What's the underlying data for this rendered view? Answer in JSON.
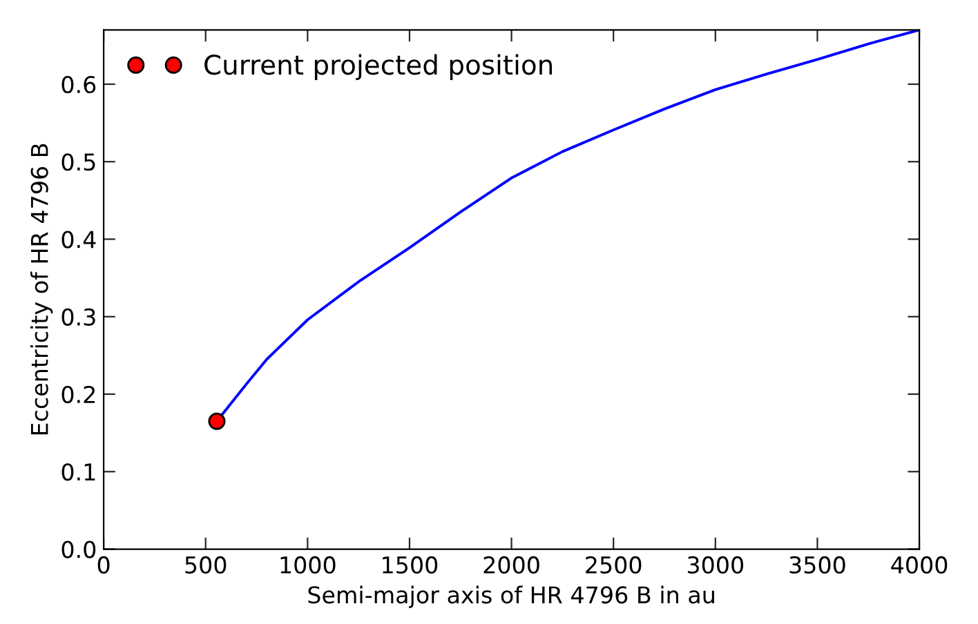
{
  "chart_data": {
    "type": "line",
    "xlabel": "Semi-major axis of HR 4796 B in au",
    "ylabel": "Eccentricity of HR 4796 B",
    "xlim": [
      0,
      4000
    ],
    "xticks": [
      0,
      500,
      1000,
      1500,
      2000,
      2500,
      3000,
      3500,
      4000
    ],
    "ylim": [
      0,
      0.67
    ],
    "yticks": [
      {
        "value": 0,
        "label": "0.0"
      },
      0.1,
      0.2,
      0.3,
      0.4,
      0.5,
      0.6
    ],
    "grid": false,
    "legend": "top left",
    "series": [
      {
        "color": "#0000ff",
        "x": [
          555,
          600,
          700,
          800,
          1000,
          1250,
          1500,
          1750,
          2000,
          2250,
          2500,
          2750,
          3000,
          3250,
          3500,
          3750,
          4000
        ],
        "values": [
          0.165,
          0.18,
          0.213,
          0.245,
          0.296,
          0.345,
          0.389,
          0.435,
          0.479,
          0.513,
          0.541,
          0.568,
          0.593,
          0.613,
          0.632,
          0.652,
          0.67
        ]
      },
      {
        "type": "scatter",
        "name": "Current projected position",
        "color": "#ff0000",
        "marker": "circle",
        "x": [
          555
        ],
        "values": [
          0.165
        ]
      }
    ]
  }
}
